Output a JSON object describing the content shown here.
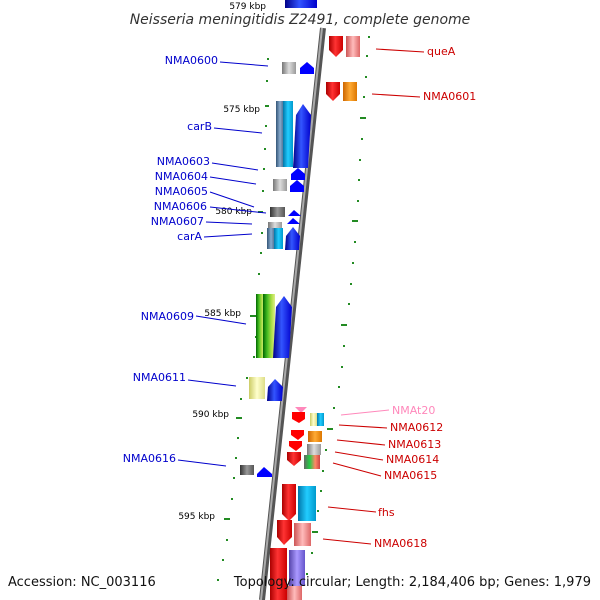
{
  "title": "Neisseria meningitidis Z2491, complete genome",
  "footer": {
    "accession": "Accession: NC_003116",
    "summary": "Topology: circular; Length: 2,184,406 bp; Genes: 1,979"
  },
  "scale_labels": [
    "579 kbp",
    "575 kbp",
    "580 kbp",
    "585 kbp",
    "590 kbp",
    "595 kbp"
  ],
  "left_genes": [
    "NMA0600",
    "carB",
    "NMA0603",
    "NMA0604",
    "NMA0605",
    "NMA0606",
    "NMA0607",
    "carA",
    "NMA0609",
    "NMA0611",
    "NMA0616"
  ],
  "right_genes": [
    "queA",
    "NMA0601",
    "NMAt20",
    "NMA0612",
    "NMA0613",
    "NMA0614",
    "NMA0615",
    "fhs",
    "NMA0618"
  ],
  "colors": {
    "forward_strand": "#0000ff",
    "reverse_strand": "#ff0000",
    "trna": "#ff88bb",
    "backbone": "#808080",
    "tick": "#228b22"
  }
}
